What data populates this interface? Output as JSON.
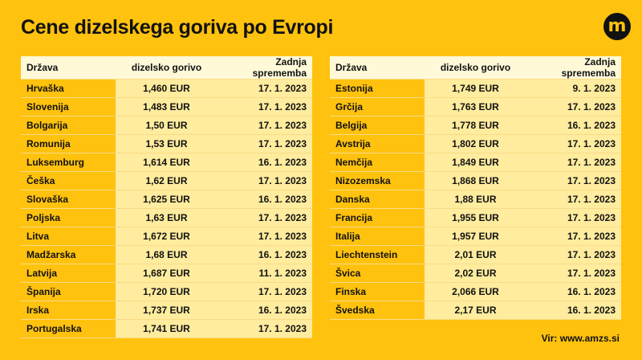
{
  "title": "Cene dizelskega goriva po Evropi",
  "logo_letter": "m",
  "columns": [
    "Država",
    "dizelsko gorivo",
    "Zadnja sprememba"
  ],
  "left_rows": [
    [
      "Hrvaška",
      "1,460 EUR",
      "17. 1. 2023"
    ],
    [
      "Slovenija",
      "1,483 EUR",
      "17. 1. 2023"
    ],
    [
      "Bolgarija",
      "1,50 EUR",
      "17. 1. 2023"
    ],
    [
      "Romunija",
      "1,53 EUR",
      "17. 1. 2023"
    ],
    [
      "Luksemburg",
      "1,614 EUR",
      "16. 1. 2023"
    ],
    [
      "Češka",
      "1,62 EUR",
      "17. 1. 2023"
    ],
    [
      "Slovaška",
      "1,625 EUR",
      "16. 1. 2023"
    ],
    [
      "Poljska",
      "1,63 EUR",
      "17. 1. 2023"
    ],
    [
      "Litva",
      "1,672 EUR",
      "17. 1. 2023"
    ],
    [
      "Madžarska",
      "1,68 EUR",
      "16. 1. 2023"
    ],
    [
      "Latvija",
      "1,687 EUR",
      "11. 1. 2023"
    ],
    [
      "Španija",
      "1,720 EUR",
      "17. 1. 2023"
    ],
    [
      "Irska",
      "1,737 EUR",
      "16. 1. 2023"
    ],
    [
      "Portugalska",
      "1,741 EUR",
      "17. 1. 2023"
    ]
  ],
  "right_rows": [
    [
      "Estonija",
      "1,749 EUR",
      "9. 1. 2023"
    ],
    [
      "Grčija",
      "1,763 EUR",
      "17. 1. 2023"
    ],
    [
      "Belgija",
      "1,778 EUR",
      "16. 1. 2023"
    ],
    [
      "Avstrija",
      "1,802 EUR",
      "17. 1. 2023"
    ],
    [
      "Nemčija",
      "1,849 EUR",
      "17. 1. 2023"
    ],
    [
      "Nizozemska",
      "1,868 EUR",
      "17. 1. 2023"
    ],
    [
      "Danska",
      "1,88 EUR",
      "17. 1. 2023"
    ],
    [
      "Francija",
      "1,955 EUR",
      "17. 1. 2023"
    ],
    [
      "Italija",
      "1,957 EUR",
      "17. 1. 2023"
    ],
    [
      "Liechtenstein",
      "2,01 EUR",
      "17. 1. 2023"
    ],
    [
      "Švica",
      "2,02 EUR",
      "17. 1. 2023"
    ],
    [
      "Finska",
      "2,066 EUR",
      "16. 1. 2023"
    ],
    [
      "Švedska",
      "2,17 EUR",
      "16. 1. 2023"
    ]
  ],
  "source": "Vir: www.amzs.si",
  "colors": {
    "background": "#FFC20E",
    "header_row": "#FFF9D8",
    "value_cells": "#FFEC9E",
    "text": "#111111"
  }
}
